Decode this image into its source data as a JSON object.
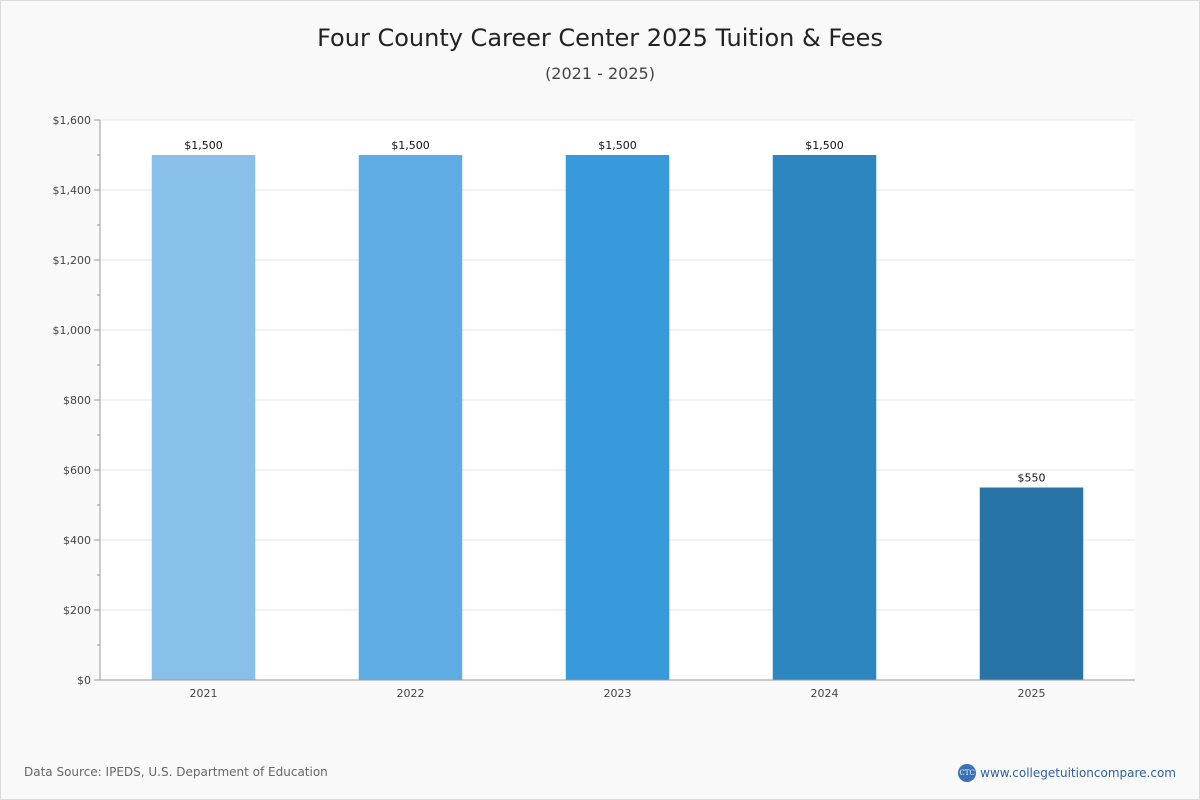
{
  "header": {
    "title": "Four County Career Center 2025 Tuition & Fees",
    "subtitle": "(2021 - 2025)"
  },
  "footer": {
    "source": "Data Source: IPEDS, U.S. Department of Education",
    "brand_logo": "CTC",
    "brand_url": "www.collegetuitioncompare.com"
  },
  "chart_data": {
    "type": "bar",
    "categories": [
      "2021",
      "2022",
      "2023",
      "2024",
      "2025"
    ],
    "values": [
      1500,
      1500,
      1500,
      1500,
      550
    ],
    "value_labels": [
      "$1,500",
      "$1,500",
      "$1,500",
      "$1,500",
      "$550"
    ],
    "colors": [
      "#89c0e9",
      "#5eace3",
      "#3899db",
      "#2e86c1",
      "#2874a6"
    ],
    "title": "Four County Career Center 2025 Tuition & Fees",
    "subtitle": "(2021 - 2025)",
    "xlabel": "",
    "ylabel": "",
    "ylim": [
      0,
      1600
    ],
    "yticks": [
      0,
      200,
      400,
      600,
      800,
      1000,
      1200,
      1400,
      1600
    ],
    "ytick_labels": [
      "$0",
      "$200",
      "$400",
      "$600",
      "$800",
      "$1,000",
      "$1,200",
      "$1,400",
      "$1,600"
    ],
    "grid": true,
    "legend": "none"
  }
}
